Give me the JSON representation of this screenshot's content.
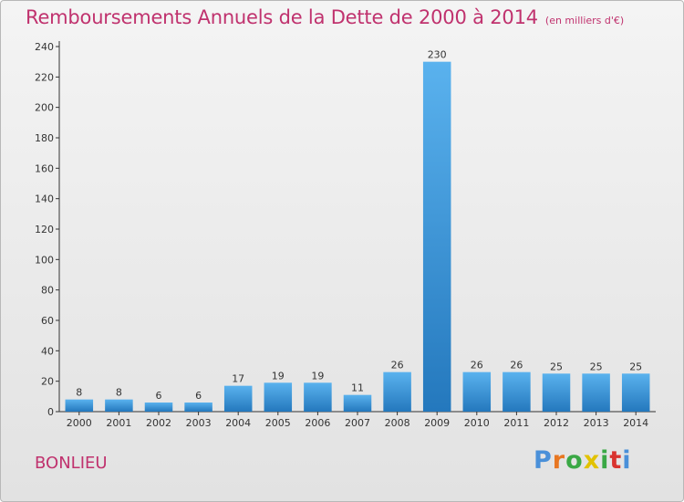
{
  "title": "Remboursements Annuels de la Dette de 2000 à 2014",
  "subtitle": "(en milliers d'€)",
  "commune": "BONLIEU",
  "logo": {
    "text": "Proxiti",
    "colors": [
      "#4a90d9",
      "#e87722",
      "#3aa845",
      "#e2c200",
      "#3aa845",
      "#d9332f",
      "#4a90d9"
    ]
  },
  "colors": {
    "bar_top": "#5ab2ee",
    "bar_bottom": "#2478bd",
    "title": "#c0326e",
    "axis": "#333333"
  },
  "chart_data": {
    "type": "bar",
    "title": "Remboursements Annuels de la Dette de 2000 à 2014",
    "subtitle": "(en milliers d'€)",
    "categories": [
      "2000",
      "2001",
      "2002",
      "2003",
      "2004",
      "2005",
      "2006",
      "2007",
      "2008",
      "2009",
      "2010",
      "2011",
      "2012",
      "2013",
      "2014"
    ],
    "values": [
      8,
      8,
      6,
      6,
      17,
      19,
      19,
      11,
      26,
      230,
      26,
      26,
      25,
      25,
      25
    ],
    "ylim": [
      0,
      240
    ],
    "yticks": [
      0,
      20,
      40,
      60,
      80,
      100,
      120,
      140,
      160,
      180,
      200,
      220,
      240
    ],
    "grid": false,
    "legend": "none"
  }
}
